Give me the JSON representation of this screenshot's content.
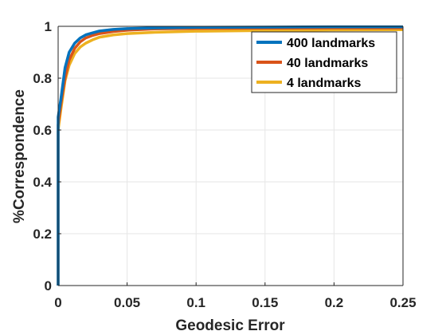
{
  "chart_data": {
    "type": "line",
    "xlabel": "Geodesic Error",
    "ylabel": "%Correspondence",
    "xlim": [
      0,
      0.25
    ],
    "ylim": [
      0,
      1
    ],
    "x_ticks": [
      "0",
      "0.05",
      "0.1",
      "0.15",
      "0.2",
      "0.25"
    ],
    "y_ticks": [
      "0",
      "0.2",
      "0.4",
      "0.6",
      "0.8",
      "1"
    ],
    "grid": true,
    "legend_position": "top-right",
    "series": [
      {
        "name": "400 landmarks",
        "color": "#0072BD",
        "x": [
          0,
          0,
          0.002,
          0.005,
          0.008,
          0.012,
          0.016,
          0.02,
          0.025,
          0.03,
          0.04,
          0.05,
          0.07,
          0.1,
          0.15,
          0.2,
          0.25
        ],
        "y": [
          0,
          0.65,
          0.72,
          0.84,
          0.9,
          0.935,
          0.955,
          0.967,
          0.975,
          0.982,
          0.988,
          0.991,
          0.994,
          0.996,
          0.997,
          0.998,
          0.998
        ]
      },
      {
        "name": "40 landmarks",
        "color": "#D95319",
        "x": [
          0,
          0,
          0.002,
          0.005,
          0.008,
          0.012,
          0.016,
          0.02,
          0.025,
          0.03,
          0.04,
          0.05,
          0.07,
          0.1,
          0.15,
          0.2,
          0.25
        ],
        "y": [
          0,
          0.62,
          0.7,
          0.8,
          0.87,
          0.915,
          0.94,
          0.955,
          0.965,
          0.972,
          0.98,
          0.985,
          0.99,
          0.992,
          0.993,
          0.994,
          0.994
        ]
      },
      {
        "name": "4 landmarks",
        "color": "#EDB120",
        "x": [
          0,
          0,
          0.002,
          0.005,
          0.008,
          0.012,
          0.016,
          0.02,
          0.025,
          0.03,
          0.04,
          0.05,
          0.07,
          0.1,
          0.15,
          0.2,
          0.25
        ],
        "y": [
          0,
          0.6,
          0.68,
          0.79,
          0.85,
          0.895,
          0.92,
          0.935,
          0.948,
          0.958,
          0.967,
          0.972,
          0.977,
          0.981,
          0.984,
          0.986,
          0.987
        ]
      }
    ]
  }
}
